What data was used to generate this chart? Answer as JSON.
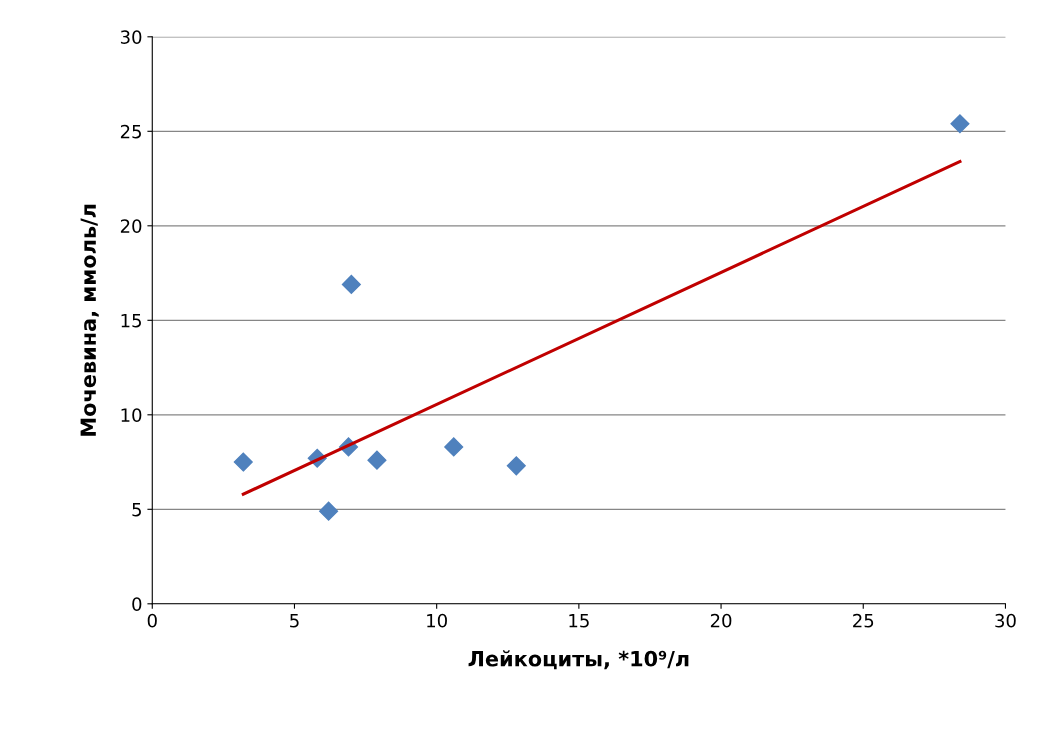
{
  "chart_data": {
    "type": "scatter",
    "xlabel": "Лейкоциты, *10⁹/л",
    "ylabel": "Мочевина, ммоль/л",
    "xlim": [
      0,
      30
    ],
    "ylim": [
      0,
      30
    ],
    "xticks": [
      0,
      5,
      10,
      15,
      20,
      25,
      30
    ],
    "yticks": [
      0,
      5,
      10,
      15,
      20,
      25,
      30
    ],
    "grid": "y",
    "marker": "diamond",
    "series": [
      {
        "color": "#4f81bd",
        "x": [
          3.2,
          5.8,
          6.9,
          6.2,
          7.0,
          7.9,
          10.6,
          12.8,
          28.4
        ],
        "values": [
          7.5,
          7.7,
          8.3,
          4.9,
          16.9,
          7.6,
          8.3,
          7.3,
          25.4
        ]
      },
      {
        "type": "line",
        "color": "#c00000",
        "marker": "none",
        "x": [
          3.2,
          28.4
        ],
        "values": [
          5.8,
          23.4
        ]
      }
    ]
  }
}
